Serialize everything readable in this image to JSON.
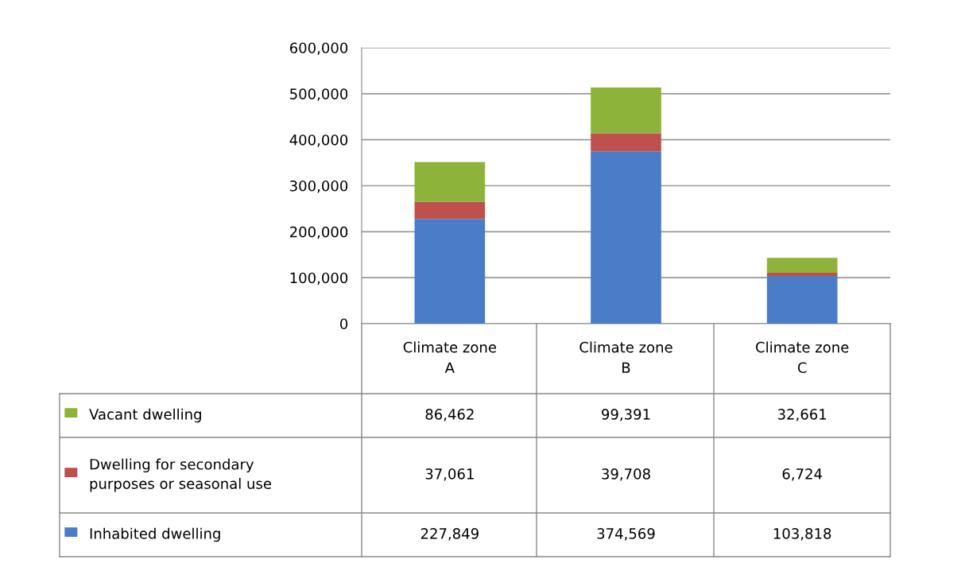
{
  "chart_data": {
    "type": "bar",
    "stacked": true,
    "categories": [
      "Climate zone\nA",
      "Climate zone\nB",
      "Climate zone\nC"
    ],
    "series": [
      {
        "name": "Inhabited dwelling",
        "color": "#4a7cc7",
        "values": [
          227849,
          374569,
          103818
        ],
        "value_labels": [
          "227,849",
          "374,569",
          "103,818"
        ]
      },
      {
        "name": "Dwelling for secondary\npurposes or seasonal use",
        "color": "#c0504d",
        "values": [
          37061,
          39708,
          6724
        ],
        "value_labels": [
          "37,061",
          "39,708",
          "6,724"
        ]
      },
      {
        "name": "Vacant dwelling",
        "color": "#8db33a",
        "values": [
          86462,
          99391,
          32661
        ],
        "value_labels": [
          "86,462",
          "99,391",
          "32,661"
        ]
      }
    ],
    "ylim": [
      0,
      600000
    ],
    "yticks": [
      {
        "value": 0,
        "label": "0"
      },
      {
        "value": 100000,
        "label": "100,000"
      },
      {
        "value": 200000,
        "label": "200,000"
      },
      {
        "value": 300000,
        "label": "300,000"
      },
      {
        "value": 400000,
        "label": "400,000"
      },
      {
        "value": 500000,
        "label": "500,000"
      },
      {
        "value": 600000,
        "label": "600,000"
      }
    ],
    "grid": "y",
    "legend": "bottom left"
  }
}
